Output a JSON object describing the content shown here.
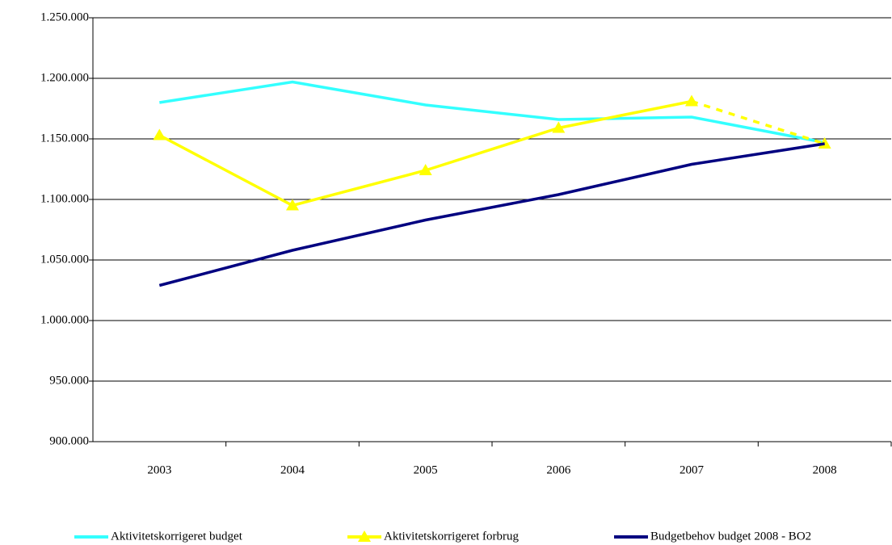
{
  "chart_data": {
    "type": "line",
    "categories": [
      "2003",
      "2004",
      "2005",
      "2006",
      "2007",
      "2008"
    ],
    "series": [
      {
        "name": "Aktivitetskorrigeret budget",
        "color": "#33ffff",
        "values": [
          1180000,
          1197000,
          1178000,
          1166000,
          1168000,
          1147000
        ]
      },
      {
        "name": "Aktivitetskorrigeret forbrug",
        "color": "#ffff00",
        "marker": "triangle",
        "dash_from_index": 4,
        "values": [
          1153000,
          1095000,
          1124000,
          1159000,
          1181000,
          1146000
        ]
      },
      {
        "name": "Budgetbehov budget 2008 - BO2",
        "color": "#000080",
        "values": [
          1029000,
          1058000,
          1083000,
          1104000,
          1129000,
          1146000
        ]
      }
    ],
    "ylim": [
      900000,
      1250000
    ],
    "yticks": [
      {
        "value": 900000,
        "label": "900.000"
      },
      {
        "value": 950000,
        "label": "950.000"
      },
      {
        "value": 1000000,
        "label": "1.000.000"
      },
      {
        "value": 1050000,
        "label": "1.050.000"
      },
      {
        "value": 1100000,
        "label": "1.100.000"
      },
      {
        "value": 1150000,
        "label": "1.150.000"
      },
      {
        "value": 1200000,
        "label": "1.200.000"
      },
      {
        "value": 1250000,
        "label": "1.250.000"
      }
    ],
    "grid": true,
    "legend": "bottom"
  }
}
